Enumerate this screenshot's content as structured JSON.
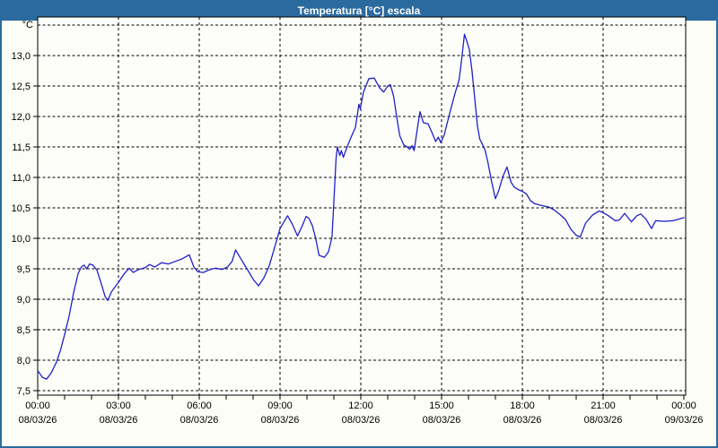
{
  "window": {
    "title": "Temperatura [°C] escala",
    "colors": {
      "title_bar": "#2b6a9e",
      "border": "#2b6a9e",
      "background": "#fcfdf5",
      "plot_background": "#fdfefa",
      "grid": "#000000",
      "text": "#000000",
      "title_text": "#ffffff"
    }
  },
  "chart_data": {
    "type": "line",
    "title": "Temperatura [°C] escala",
    "grid": "dashed",
    "legend": "none",
    "y_axis": {
      "unit_label": "°C",
      "min": 7.5,
      "max": 13.5,
      "gridline_step": 0.5,
      "tick_labels": [
        {
          "value": 13.0,
          "label": "13,0"
        },
        {
          "value": 12.5,
          "label": "12,5"
        },
        {
          "value": 12.0,
          "label": "12,0"
        },
        {
          "value": 11.5,
          "label": "11,5"
        },
        {
          "value": 11.0,
          "label": "11,0"
        },
        {
          "value": 10.5,
          "label": "10,5"
        },
        {
          "value": 10.0,
          "label": "10,0"
        },
        {
          "value": 9.5,
          "label": "9,5"
        },
        {
          "value": 9.0,
          "label": "9,0"
        },
        {
          "value": 8.5,
          "label": "8,5"
        },
        {
          "value": 8.0,
          "label": "8,0"
        },
        {
          "value": 7.5,
          "label": "7,5"
        }
      ]
    },
    "x_axis": {
      "min_hours": 0,
      "max_hours": 24,
      "minor_tick_hours": 1,
      "major_ticks": [
        {
          "hours": 0,
          "time": "00:00",
          "date": "08/03/26"
        },
        {
          "hours": 3,
          "time": "03:00",
          "date": "08/03/26"
        },
        {
          "hours": 6,
          "time": "06:00",
          "date": "08/03/26"
        },
        {
          "hours": 9,
          "time": "09:00",
          "date": "08/03/26"
        },
        {
          "hours": 12,
          "time": "12:00",
          "date": "08/03/26"
        },
        {
          "hours": 15,
          "time": "15:00",
          "date": "08/03/26"
        },
        {
          "hours": 18,
          "time": "18:00",
          "date": "08/03/26"
        },
        {
          "hours": 21,
          "time": "21:00",
          "date": "08/03/26"
        },
        {
          "hours": 24,
          "time": "00:00",
          "date": "09/03/26"
        }
      ]
    },
    "series": [
      {
        "name": "Temperatura",
        "color": "#2020c8",
        "points": [
          [
            0,
            7.83
          ],
          [
            0.17,
            7.72
          ],
          [
            0.33,
            7.69
          ],
          [
            0.5,
            7.79
          ],
          [
            0.7,
            7.97
          ],
          [
            0.85,
            8.17
          ],
          [
            1,
            8.42
          ],
          [
            1.17,
            8.73
          ],
          [
            1.33,
            9.1
          ],
          [
            1.5,
            9.42
          ],
          [
            1.62,
            9.53
          ],
          [
            1.72,
            9.56
          ],
          [
            1.82,
            9.5
          ],
          [
            1.93,
            9.58
          ],
          [
            2.05,
            9.56
          ],
          [
            2.2,
            9.48
          ],
          [
            2.35,
            9.27
          ],
          [
            2.5,
            9.05
          ],
          [
            2.6,
            8.98
          ],
          [
            2.75,
            9.13
          ],
          [
            3,
            9.28
          ],
          [
            3.2,
            9.41
          ],
          [
            3.4,
            9.51
          ],
          [
            3.55,
            9.44
          ],
          [
            3.75,
            9.49
          ],
          [
            4,
            9.52
          ],
          [
            4.15,
            9.57
          ],
          [
            4.35,
            9.53
          ],
          [
            4.6,
            9.6
          ],
          [
            4.85,
            9.58
          ],
          [
            5.1,
            9.62
          ],
          [
            5.35,
            9.66
          ],
          [
            5.63,
            9.73
          ],
          [
            5.8,
            9.53
          ],
          [
            5.95,
            9.45
          ],
          [
            6.15,
            9.44
          ],
          [
            6.35,
            9.48
          ],
          [
            6.6,
            9.51
          ],
          [
            6.85,
            9.49
          ],
          [
            7.05,
            9.53
          ],
          [
            7.22,
            9.62
          ],
          [
            7.35,
            9.81
          ],
          [
            7.55,
            9.66
          ],
          [
            7.8,
            9.48
          ],
          [
            8,
            9.33
          ],
          [
            8.2,
            9.22
          ],
          [
            8.4,
            9.35
          ],
          [
            8.6,
            9.55
          ],
          [
            8.8,
            9.85
          ],
          [
            9,
            10.16
          ],
          [
            9.28,
            10.37
          ],
          [
            9.45,
            10.24
          ],
          [
            9.65,
            10.04
          ],
          [
            9.83,
            10.21
          ],
          [
            9.97,
            10.36
          ],
          [
            10.07,
            10.33
          ],
          [
            10.2,
            10.21
          ],
          [
            10.33,
            9.99
          ],
          [
            10.45,
            9.72
          ],
          [
            10.65,
            9.69
          ],
          [
            10.8,
            9.78
          ],
          [
            10.93,
            10.02
          ],
          [
            11,
            10.6
          ],
          [
            11.08,
            11.3
          ],
          [
            11.13,
            11.5
          ],
          [
            11.22,
            11.36
          ],
          [
            11.28,
            11.44
          ],
          [
            11.35,
            11.33
          ],
          [
            11.5,
            11.51
          ],
          [
            11.65,
            11.67
          ],
          [
            11.8,
            11.82
          ],
          [
            11.88,
            12.05
          ],
          [
            11.93,
            12.2
          ],
          [
            11.98,
            12.13
          ],
          [
            12.1,
            12.4
          ],
          [
            12.3,
            12.62
          ],
          [
            12.5,
            12.63
          ],
          [
            12.7,
            12.47
          ],
          [
            12.85,
            12.4
          ],
          [
            13,
            12.5
          ],
          [
            13.1,
            12.52
          ],
          [
            13.22,
            12.33
          ],
          [
            13.33,
            12
          ],
          [
            13.45,
            11.68
          ],
          [
            13.6,
            11.53
          ],
          [
            13.72,
            11.5
          ],
          [
            13.82,
            11.46
          ],
          [
            13.9,
            11.52
          ],
          [
            13.98,
            11.44
          ],
          [
            14.1,
            11.8
          ],
          [
            14.2,
            12.08
          ],
          [
            14.32,
            11.9
          ],
          [
            14.5,
            11.88
          ],
          [
            14.65,
            11.73
          ],
          [
            14.78,
            11.59
          ],
          [
            14.88,
            11.66
          ],
          [
            14.97,
            11.57
          ],
          [
            15.1,
            11.7
          ],
          [
            15.3,
            12.05
          ],
          [
            15.5,
            12.38
          ],
          [
            15.65,
            12.6
          ],
          [
            15.75,
            12.95
          ],
          [
            15.85,
            13.35
          ],
          [
            15.95,
            13.22
          ],
          [
            16.03,
            13.1
          ],
          [
            16.13,
            12.75
          ],
          [
            16.22,
            12.35
          ],
          [
            16.33,
            11.85
          ],
          [
            16.42,
            11.63
          ],
          [
            16.52,
            11.54
          ],
          [
            16.62,
            11.44
          ],
          [
            16.72,
            11.25
          ],
          [
            16.85,
            10.95
          ],
          [
            17,
            10.65
          ],
          [
            17.12,
            10.78
          ],
          [
            17.28,
            11.02
          ],
          [
            17.43,
            11.17
          ],
          [
            17.58,
            10.92
          ],
          [
            17.7,
            10.84
          ],
          [
            17.85,
            10.8
          ],
          [
            18,
            10.77
          ],
          [
            18.15,
            10.73
          ],
          [
            18.3,
            10.62
          ],
          [
            18.45,
            10.57
          ],
          [
            18.7,
            10.54
          ],
          [
            19,
            10.51
          ],
          [
            19.2,
            10.46
          ],
          [
            19.4,
            10.39
          ],
          [
            19.6,
            10.31
          ],
          [
            19.8,
            10.15
          ],
          [
            20,
            10.05
          ],
          [
            20.15,
            10.02
          ],
          [
            20.35,
            10.25
          ],
          [
            20.6,
            10.38
          ],
          [
            20.85,
            10.45
          ],
          [
            21,
            10.42
          ],
          [
            21.2,
            10.37
          ],
          [
            21.45,
            10.29
          ],
          [
            21.6,
            10.3
          ],
          [
            21.8,
            10.41
          ],
          [
            22.05,
            10.27
          ],
          [
            22.25,
            10.37
          ],
          [
            22.4,
            10.4
          ],
          [
            22.6,
            10.31
          ],
          [
            22.8,
            10.16
          ],
          [
            22.95,
            10.29
          ],
          [
            23.3,
            10.28
          ],
          [
            23.6,
            10.29
          ],
          [
            23.85,
            10.32
          ],
          [
            24,
            10.34
          ]
        ]
      }
    ]
  }
}
